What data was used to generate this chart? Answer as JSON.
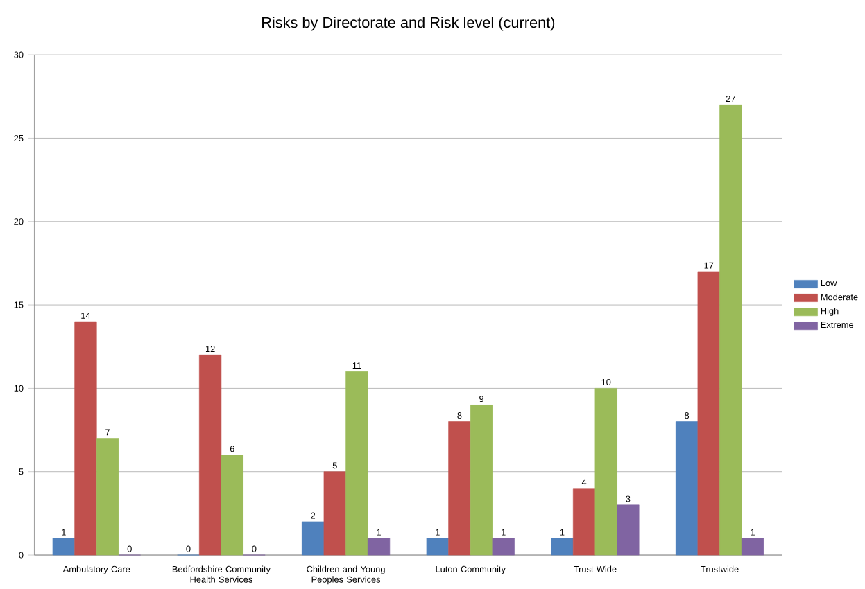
{
  "chart_data": {
    "type": "bar",
    "title": "Risks by Directorate and Risk level (current)",
    "categories": [
      "Ambulatory Care",
      "Bedfordshire Community Health Services",
      "Children and Young Peoples Services",
      "Luton Community",
      "Trust Wide",
      "Trustwide"
    ],
    "series": [
      {
        "name": "Low",
        "color": "#4f81bd",
        "values": [
          1,
          0,
          2,
          1,
          1,
          8
        ],
        "value_labels": [
          "1",
          "0",
          "2",
          "1",
          "1",
          "8"
        ]
      },
      {
        "name": "Moderate",
        "color": "#c0504d",
        "values": [
          14,
          12,
          5,
          8,
          4,
          17
        ],
        "value_labels": [
          "14",
          "12",
          "5",
          "8",
          "4",
          "17"
        ]
      },
      {
        "name": "High",
        "color": "#9bbb59",
        "values": [
          7,
          6,
          11,
          9,
          10,
          27
        ],
        "value_labels": [
          "7",
          "6",
          "11",
          "9",
          "10",
          "27"
        ]
      },
      {
        "name": "Extreme",
        "color": "#8064a2",
        "values": [
          0,
          0,
          1,
          1,
          3,
          1
        ],
        "value_labels": [
          "0",
          "0",
          "1",
          "1",
          "3",
          "1"
        ]
      }
    ],
    "ylim": [
      0,
      30
    ],
    "yticks": [
      0,
      5,
      10,
      15,
      20,
      25,
      30
    ],
    "grid": "y",
    "legend": "right"
  }
}
